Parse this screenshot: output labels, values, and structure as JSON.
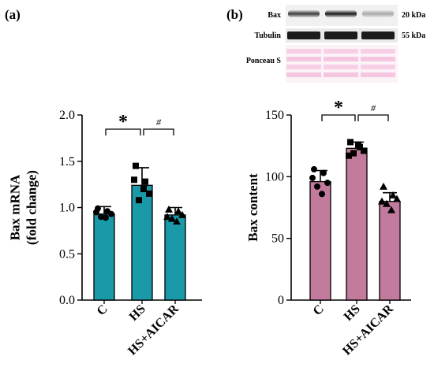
{
  "colors": {
    "panel_a_bar": "#1a9aa8",
    "panel_b_bar": "#c27b9c",
    "ink": "#000000",
    "ponceau": "#f08ec4"
  },
  "chart_data": [
    {
      "type": "bar",
      "panel_label": "(a)",
      "title": "",
      "ylabel": [
        "Bax mRNA",
        "(fold change)"
      ],
      "categories": [
        "C",
        "HS",
        "HS+AICAR"
      ],
      "values": [
        0.93,
        1.24,
        0.92
      ],
      "errors": [
        0.08,
        0.19,
        0.08
      ],
      "points": [
        [
          0.99,
          0.96,
          0.93,
          0.9,
          0.89,
          0.95
        ],
        [
          1.45,
          1.28,
          1.15,
          1.08,
          1.2,
          1.3
        ],
        [
          0.98,
          0.96,
          0.92,
          0.88,
          0.85,
          0.9
        ]
      ],
      "markers": [
        "circle",
        "square",
        "triangle"
      ],
      "ylim": [
        0,
        2.0
      ],
      "yticks": [
        0.0,
        0.5,
        1.0,
        1.5,
        2.0
      ],
      "yticklabels": [
        "0.0",
        "0.5",
        "1.0",
        "1.5",
        "2.0"
      ],
      "grid": false,
      "significance": [
        {
          "from": 0,
          "to": 1,
          "symbol": "*"
        },
        {
          "from": 1,
          "to": 2,
          "symbol": "#"
        }
      ]
    },
    {
      "type": "bar",
      "panel_label": "(b)",
      "title": "",
      "ylabel": [
        "Bax content"
      ],
      "categories": [
        "C",
        "HS",
        "HS+AICAR"
      ],
      "values": [
        96,
        123,
        80
      ],
      "errors": [
        9,
        5,
        7
      ],
      "points": [
        [
          106,
          103,
          95,
          92,
          86,
          99
        ],
        [
          128,
          124,
          121,
          119,
          126,
          117
        ],
        [
          92,
          85,
          82,
          78,
          73,
          80
        ]
      ],
      "markers": [
        "circle",
        "square",
        "triangle"
      ],
      "ylim": [
        0,
        150
      ],
      "yticks": [
        0,
        50,
        100,
        150
      ],
      "yticklabels": [
        "0",
        "50",
        "100",
        "150"
      ],
      "grid": false,
      "significance": [
        {
          "from": 0,
          "to": 1,
          "symbol": "*"
        },
        {
          "from": 1,
          "to": 2,
          "symbol": "#"
        }
      ]
    }
  ],
  "blot": {
    "rows": [
      {
        "label": "Bax",
        "mw": "20 kDa"
      },
      {
        "label": "Tubulin",
        "mw": "55 kDa"
      },
      {
        "label": "Ponceau S",
        "mw": ""
      }
    ],
    "bax_band_intensity": [
      0.75,
      0.9,
      0.3
    ],
    "tubulin_band_intensity": [
      0.95,
      0.95,
      0.95
    ]
  }
}
